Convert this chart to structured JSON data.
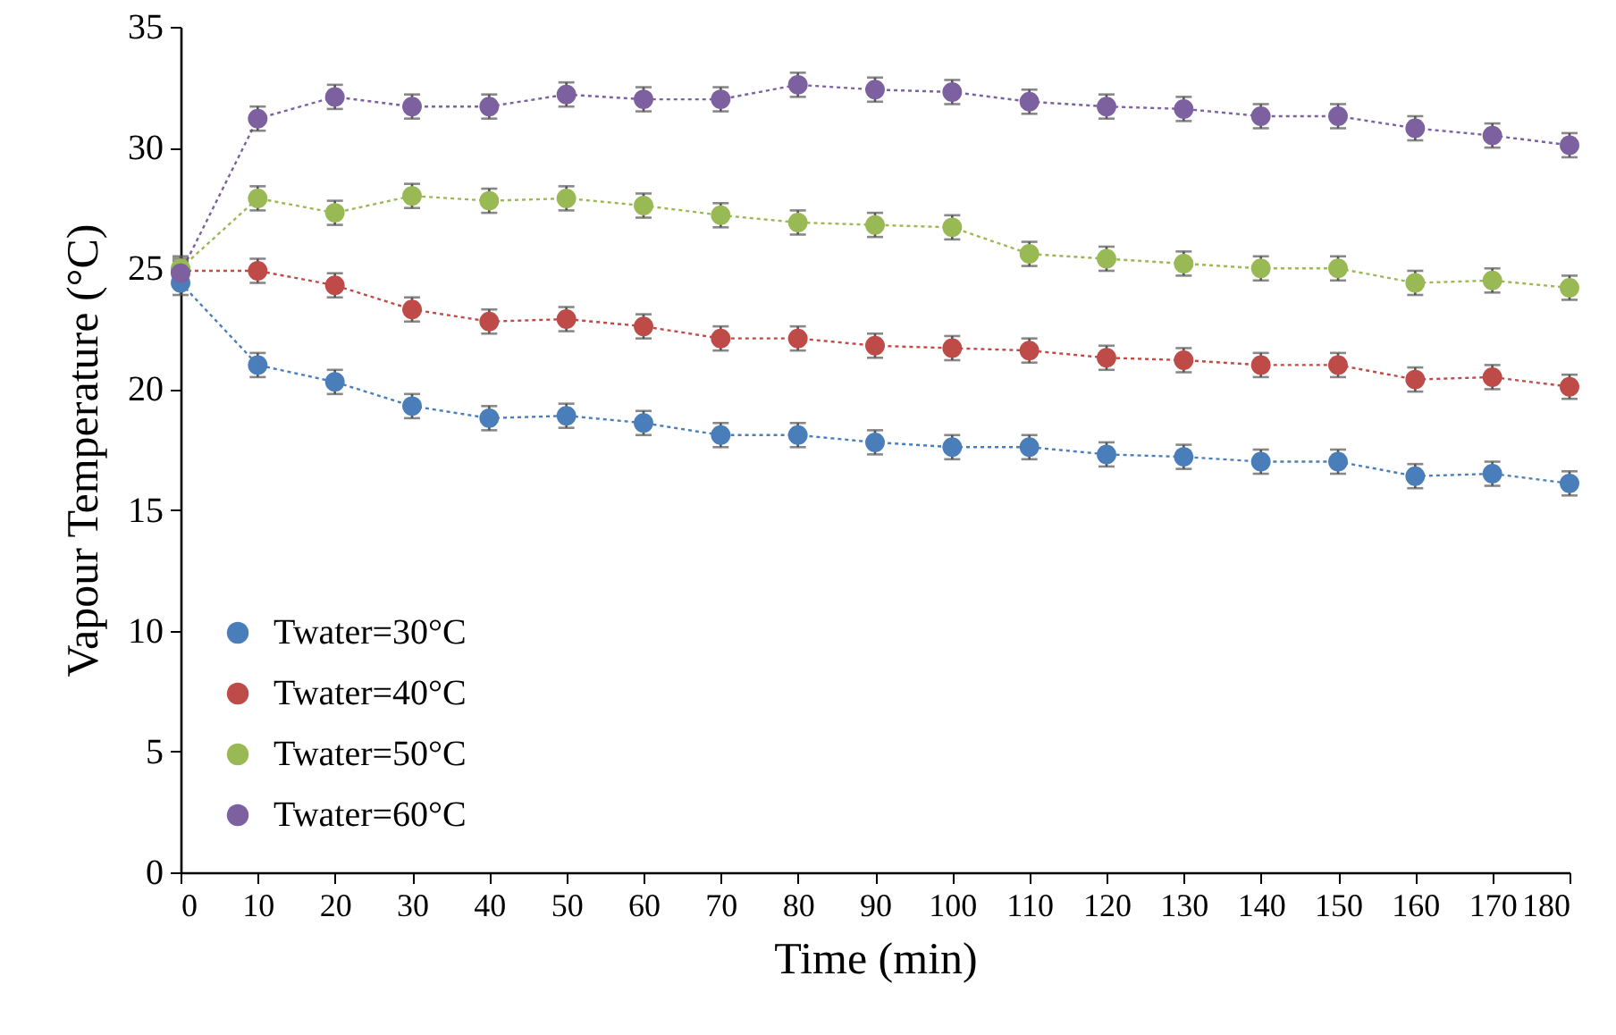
{
  "chart_data": {
    "type": "line",
    "xlabel": "Time (min)",
    "ylabel": "Vapour Temperature (°C)",
    "x": [
      0,
      10,
      20,
      30,
      40,
      50,
      60,
      70,
      80,
      90,
      100,
      110,
      120,
      130,
      140,
      150,
      160,
      170,
      180
    ],
    "xlim": [
      0,
      180
    ],
    "xticks": [
      0,
      10,
      20,
      30,
      40,
      50,
      60,
      70,
      80,
      90,
      100,
      110,
      120,
      130,
      140,
      150,
      160,
      170,
      180
    ],
    "ylim": [
      0,
      35
    ],
    "yticks": [
      0,
      5,
      10,
      15,
      20,
      25,
      30,
      35
    ],
    "grid": false,
    "legend": "bottom left",
    "marker": "circle",
    "line_style": "dotted",
    "series": [
      {
        "name": "Twater=30°C",
        "color": "#4a7ebb",
        "values": [
          24.4,
          21.0,
          20.3,
          19.3,
          18.8,
          18.9,
          18.6,
          18.1,
          18.1,
          17.8,
          17.6,
          17.6,
          17.3,
          17.2,
          17.0,
          17.0,
          16.4,
          16.5,
          16.1
        ],
        "errors": [
          0.5,
          0.5,
          0.5,
          0.5,
          0.5,
          0.5,
          0.5,
          0.5,
          0.5,
          0.5,
          0.5,
          0.5,
          0.5,
          0.5,
          0.5,
          0.5,
          0.5,
          0.5,
          0.5
        ]
      },
      {
        "name": "Twater=40°C",
        "color": "#be4b48",
        "values": [
          24.9,
          24.9,
          24.3,
          23.3,
          22.8,
          22.9,
          22.6,
          22.1,
          22.1,
          21.8,
          21.7,
          21.6,
          21.3,
          21.2,
          21.0,
          21.0,
          20.4,
          20.5,
          20.1
        ],
        "errors": [
          0.5,
          0.5,
          0.5,
          0.5,
          0.5,
          0.5,
          0.5,
          0.5,
          0.5,
          0.5,
          0.5,
          0.5,
          0.5,
          0.5,
          0.5,
          0.5,
          0.5,
          0.5,
          0.5
        ]
      },
      {
        "name": "Twater=50°C",
        "color": "#98b954",
        "values": [
          25.0,
          27.9,
          27.3,
          28.0,
          27.8,
          27.9,
          27.6,
          27.2,
          26.9,
          26.8,
          26.7,
          25.6,
          25.4,
          25.2,
          25.0,
          25.0,
          24.4,
          24.5,
          24.2
        ],
        "errors": [
          0.5,
          0.5,
          0.5,
          0.5,
          0.5,
          0.5,
          0.5,
          0.5,
          0.5,
          0.5,
          0.5,
          0.5,
          0.5,
          0.5,
          0.5,
          0.5,
          0.5,
          0.5,
          0.5
        ]
      },
      {
        "name": "Twater=60°C",
        "color": "#7d60a0",
        "values": [
          24.8,
          31.2,
          32.1,
          31.7,
          31.7,
          32.2,
          32.0,
          32.0,
          32.6,
          32.4,
          32.3,
          31.9,
          31.7,
          31.6,
          31.3,
          31.3,
          30.8,
          30.5,
          30.1
        ],
        "errors": [
          0.5,
          0.5,
          0.5,
          0.5,
          0.5,
          0.5,
          0.5,
          0.5,
          0.5,
          0.5,
          0.5,
          0.5,
          0.5,
          0.5,
          0.5,
          0.5,
          0.5,
          0.5,
          0.5
        ]
      }
    ]
  }
}
